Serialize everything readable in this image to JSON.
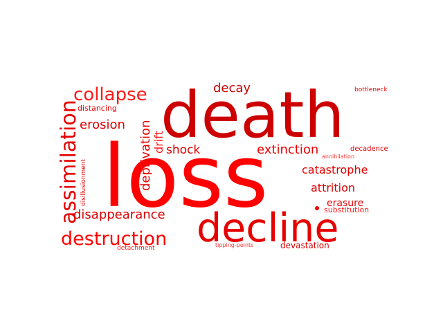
{
  "word_cloud": {
    "words": [
      {
        "text": "death",
        "color": "#cc0000"
      },
      {
        "text": "loss",
        "color": "#ff0000"
      },
      {
        "text": "decline",
        "color": "#e60000"
      },
      {
        "text": "assimilation",
        "color": "#e60000"
      },
      {
        "text": "collapse",
        "color": "#ff1a1a"
      },
      {
        "text": "destruction",
        "color": "#ff0000"
      },
      {
        "text": "disappearance",
        "color": "#dd0000"
      },
      {
        "text": "decay",
        "color": "#cc0000"
      },
      {
        "text": "erosion",
        "color": "#dd0000"
      },
      {
        "text": "deprivation",
        "color": "#e60000"
      },
      {
        "text": "drift",
        "color": "#ff1a1a"
      },
      {
        "text": "shock",
        "color": "#dd0000"
      },
      {
        "text": "extinction",
        "color": "#ee0000"
      },
      {
        "text": "catastrophe",
        "color": "#e60000"
      },
      {
        "text": "attrition",
        "color": "#dd0000"
      },
      {
        "text": "erasure",
        "color": "#e60000"
      },
      {
        "text": "substitution",
        "color": "#ff1a1a"
      },
      {
        "text": "devastation",
        "color": "#dd0000"
      },
      {
        "text": "distancing",
        "color": "#e60000"
      },
      {
        "text": "disillusionment",
        "color": "#e60000"
      },
      {
        "text": "detachment",
        "color": "#ee2222"
      },
      {
        "text": "tipping-points",
        "color": "#ff3333"
      },
      {
        "text": "bottleneck",
        "color": "#ee0000"
      },
      {
        "text": "decadence",
        "color": "#dd0000"
      },
      {
        "text": "annihilation",
        "color": "#ff3333"
      }
    ]
  }
}
